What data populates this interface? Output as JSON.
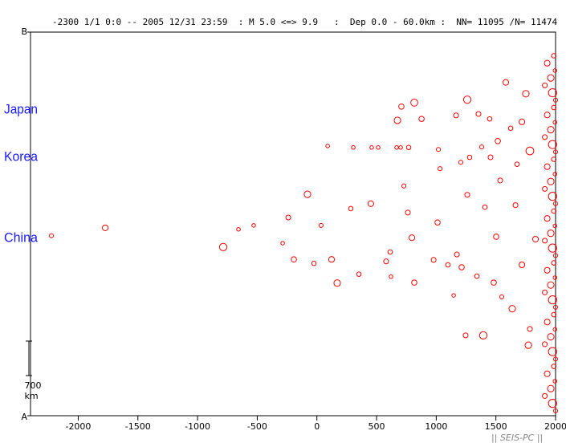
{
  "chart_data": {
    "type": "scatter",
    "title": "-2300 1/1 0:0 -- 2005 12/31 23:59  : M 5.0 <=> 9.9   :  Dep 0.0 - 60.0km :  NN= 11095 /N= 11474",
    "footer": "|| SEIS-PC ||",
    "color": "#ff0000",
    "xlim": [
      -2400,
      2000
    ],
    "xticks": [
      -2000,
      -1500,
      -1000,
      -500,
      0,
      500,
      1000,
      1500,
      2000
    ],
    "ylim": [
      0,
      7780
    ],
    "yticks": [
      {
        "value": 0,
        "label": "A"
      },
      {
        "value": 7780,
        "label": "B"
      }
    ],
    "scale_bar": {
      "value": 700,
      "unit": "km"
    },
    "annotations": [
      {
        "text": "Japan",
        "y": 6200
      },
      {
        "text": "Korea",
        "y": 5240
      },
      {
        "text": "China",
        "y": 3600
      }
    ],
    "x": [
      -2225,
      -1774,
      -785,
      -657,
      -530,
      -287,
      -240,
      -79,
      -193,
      -25,
      90,
      35,
      123,
      170,
      284,
      452,
      352,
      305,
      459,
      513,
      668,
      702,
      769,
      675,
      708,
      816,
      877,
      796,
      729,
      762,
      614,
      621,
      816,
      580,
      1018,
      1032,
      1011,
      1098,
      978,
      1166,
      1260,
      1280,
      1206,
      1260,
      1246,
      1394,
      1146,
      1173,
      1213,
      1341,
      1408,
      1381,
      1455,
      1516,
      1583,
      1751,
      1785,
      1637,
      1718,
      1664,
      1536,
      1502,
      1482,
      1549,
      1785,
      1772,
      1832,
      1718,
      1624,
      1677,
      1448,
      1354,
      1985,
      1930,
      1995,
      1960,
      1910,
      1975,
      2000,
      1985,
      1930,
      1995,
      1960,
      1910,
      1975,
      2000,
      1985,
      1930,
      1995,
      1960,
      1910,
      1975,
      2000,
      1985,
      1930,
      1995,
      1960,
      1910,
      1975,
      2000,
      1985,
      1930,
      1995,
      1960,
      1910,
      1975,
      2000,
      1985,
      1930,
      1995,
      1960,
      1910,
      1975,
      2000,
      1985,
      1930,
      1995,
      1960,
      1910,
      1975,
      2000
    ],
    "y": [
      3650,
      3810,
      3420,
      3780,
      3860,
      3500,
      4020,
      4490,
      3170,
      3090,
      5470,
      3860,
      3170,
      2690,
      4200,
      4300,
      2870,
      5440,
      5440,
      5440,
      5440,
      5440,
      5440,
      5990,
      6270,
      6350,
      6020,
      3610,
      4660,
      4120,
      3320,
      2820,
      2700,
      3130,
      5400,
      5010,
      3920,
      3060,
      3160,
      6090,
      6410,
      5240,
      5140,
      4480,
      1630,
      1630,
      2440,
      3270,
      3010,
      2830,
      4230,
      5450,
      5240,
      5570,
      6760,
      6530,
      5370,
      2170,
      3060,
      4270,
      4770,
      3630,
      2700,
      2410,
      1760,
      1430,
      3580,
      5960,
      5830,
      5100,
      6020,
      6120,
      7300,
      7150,
      7000,
      6850,
      6700,
      6550,
      6400,
      6250,
      6100,
      5950,
      5800,
      5650,
      5500,
      5350,
      5200,
      5050,
      4900,
      4750,
      4600,
      4450,
      4300,
      4150,
      4000,
      3850,
      3700,
      3550,
      3400,
      3250,
      3100,
      2950,
      2800,
      2650,
      2500,
      2350,
      2200,
      2050,
      1900,
      1750,
      1600,
      1450,
      1300,
      1150,
      1000,
      850,
      700,
      550,
      400,
      250,
      100
    ],
    "sizes": [
      5.2,
      5.6,
      6.0,
      5.1,
      5.1,
      5.1,
      5.4,
      5.8,
      5.5,
      5.3,
      5.1,
      5.2,
      5.6,
      5.8,
      5.3,
      5.6,
      5.3,
      5.1,
      5.1,
      5.1,
      5.1,
      5.1,
      5.3,
      5.8,
      5.5,
      5.9,
      5.5,
      5.6,
      5.2,
      5.4,
      5.3,
      5.1,
      5.5,
      5.4,
      5.2,
      5.2,
      5.5,
      5.3,
      5.4,
      5.4,
      6.0,
      5.3,
      5.2,
      5.4,
      5.4,
      6.0,
      5.1,
      5.4,
      5.5,
      5.3,
      5.3,
      5.2,
      5.4,
      5.5,
      5.6,
      5.8,
      6.1,
      5.8,
      5.6,
      5.4,
      5.4,
      5.5,
      5.5,
      5.2,
      5.4,
      5.8,
      5.6,
      5.6,
      5.3,
      5.3,
      5.3,
      5.4,
      5.3,
      5.6,
      5.1,
      5.8,
      5.4,
      6.2,
      5.2,
      5.3,
      5.6,
      5.1,
      5.8,
      5.4,
      6.2,
      5.2,
      5.3,
      5.6,
      5.1,
      5.8,
      5.4,
      6.2,
      5.2,
      5.3,
      5.6,
      5.1,
      5.8,
      5.4,
      6.2,
      5.2,
      5.3,
      5.6,
      5.1,
      5.8,
      5.4,
      6.2,
      5.2,
      5.3,
      5.6,
      5.1,
      5.8,
      5.4,
      6.2,
      5.2,
      5.3,
      5.6,
      5.1,
      5.8,
      5.4,
      6.2,
      5.2
    ]
  }
}
